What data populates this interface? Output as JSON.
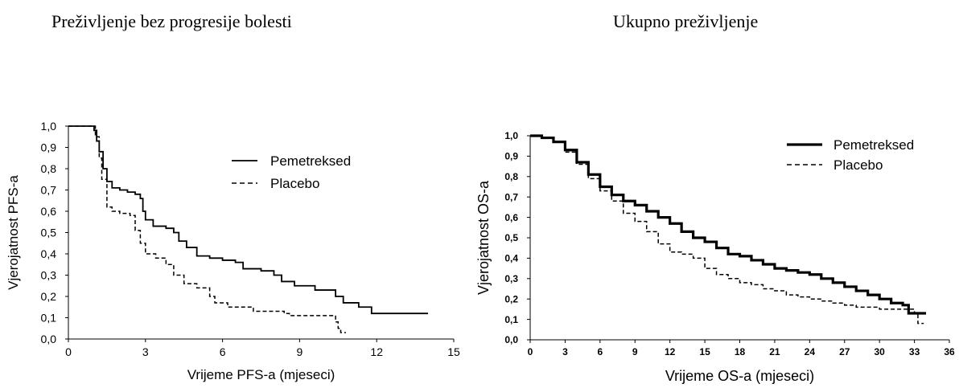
{
  "titles": {
    "left": "Preživljenje bez progresije bolesti",
    "right": "Ukupno preživljenje"
  },
  "chart_data": [
    {
      "type": "line",
      "title": "Preživljenje bez progresije bolesti",
      "xlabel": "Vrijeme PFS-a (mjeseci)",
      "ylabel": "Vjerojatnost PFS-a",
      "xlim": [
        0,
        15
      ],
      "ylim": [
        0,
        1
      ],
      "xticks": [
        0,
        3,
        6,
        9,
        12,
        15
      ],
      "yticks": [
        "0,0",
        "0,1",
        "0,2",
        "0,3",
        "0,4",
        "0,5",
        "0,6",
        "0,7",
        "0,8",
        "0,9",
        "1,0"
      ],
      "grid": false,
      "legend_position": "upper-right",
      "series": [
        {
          "name": "Pemetreksed",
          "style": "solid",
          "points": [
            [
              0,
              1.0
            ],
            [
              0.8,
              1.0
            ],
            [
              1.0,
              0.98
            ],
            [
              1.1,
              0.93
            ],
            [
              1.2,
              0.88
            ],
            [
              1.35,
              0.8
            ],
            [
              1.5,
              0.74
            ],
            [
              1.7,
              0.71
            ],
            [
              2.0,
              0.7
            ],
            [
              2.3,
              0.69
            ],
            [
              2.6,
              0.68
            ],
            [
              2.8,
              0.66
            ],
            [
              2.9,
              0.6
            ],
            [
              3.0,
              0.56
            ],
            [
              3.3,
              0.53
            ],
            [
              3.8,
              0.52
            ],
            [
              4.1,
              0.5
            ],
            [
              4.3,
              0.46
            ],
            [
              4.6,
              0.43
            ],
            [
              5.0,
              0.39
            ],
            [
              5.5,
              0.38
            ],
            [
              6.0,
              0.37
            ],
            [
              6.5,
              0.36
            ],
            [
              6.8,
              0.33
            ],
            [
              7.5,
              0.32
            ],
            [
              8.0,
              0.3
            ],
            [
              8.3,
              0.27
            ],
            [
              8.8,
              0.25
            ],
            [
              9.6,
              0.23
            ],
            [
              10.4,
              0.2
            ],
            [
              10.7,
              0.17
            ],
            [
              11.3,
              0.15
            ],
            [
              11.8,
              0.12
            ],
            [
              14.0,
              0.12
            ]
          ]
        },
        {
          "name": "Placebo",
          "style": "dashed",
          "points": [
            [
              0,
              1.0
            ],
            [
              0.9,
              1.0
            ],
            [
              1.05,
              0.95
            ],
            [
              1.2,
              0.85
            ],
            [
              1.3,
              0.75
            ],
            [
              1.5,
              0.62
            ],
            [
              1.7,
              0.6
            ],
            [
              2.0,
              0.59
            ],
            [
              2.4,
              0.58
            ],
            [
              2.6,
              0.51
            ],
            [
              2.8,
              0.45
            ],
            [
              3.0,
              0.4
            ],
            [
              3.4,
              0.38
            ],
            [
              3.8,
              0.35
            ],
            [
              4.1,
              0.3
            ],
            [
              4.5,
              0.26
            ],
            [
              5.0,
              0.24
            ],
            [
              5.5,
              0.2
            ],
            [
              5.7,
              0.17
            ],
            [
              6.2,
              0.15
            ],
            [
              7.2,
              0.13
            ],
            [
              8.4,
              0.12
            ],
            [
              8.6,
              0.11
            ],
            [
              10.2,
              0.11
            ],
            [
              10.4,
              0.08
            ],
            [
              10.5,
              0.05
            ],
            [
              10.6,
              0.03
            ],
            [
              10.8,
              0.03
            ]
          ]
        }
      ]
    },
    {
      "type": "line",
      "title": "Ukupno preživljenje",
      "xlabel": "Vrijeme OS-a (mjeseci)",
      "ylabel": "Vjerojatnost OS-a",
      "xlim": [
        0,
        36
      ],
      "ylim": [
        0,
        1
      ],
      "xticks": [
        0,
        3,
        6,
        9,
        12,
        15,
        18,
        21,
        24,
        27,
        30,
        33,
        36
      ],
      "yticks": [
        "0,0",
        "0,1",
        "0,2",
        "0,3",
        "0,4",
        "0,5",
        "0,6",
        "0,7",
        "0,8",
        "0,9",
        "1,0"
      ],
      "grid": false,
      "legend_position": "upper-right",
      "series": [
        {
          "name": "Pemetreksed",
          "style": "solid-bold",
          "points": [
            [
              0,
              1.0
            ],
            [
              1.0,
              0.99
            ],
            [
              2.0,
              0.97
            ],
            [
              3.0,
              0.93
            ],
            [
              4.0,
              0.87
            ],
            [
              5.0,
              0.81
            ],
            [
              6.0,
              0.75
            ],
            [
              7.0,
              0.71
            ],
            [
              8.0,
              0.68
            ],
            [
              9.0,
              0.66
            ],
            [
              10.0,
              0.63
            ],
            [
              11.0,
              0.6
            ],
            [
              12.0,
              0.57
            ],
            [
              13.0,
              0.53
            ],
            [
              14.0,
              0.5
            ],
            [
              15.0,
              0.48
            ],
            [
              16.0,
              0.45
            ],
            [
              17.0,
              0.42
            ],
            [
              18.0,
              0.41
            ],
            [
              19.0,
              0.39
            ],
            [
              20.0,
              0.37
            ],
            [
              21.0,
              0.35
            ],
            [
              22.0,
              0.34
            ],
            [
              23.0,
              0.33
            ],
            [
              24.0,
              0.32
            ],
            [
              25.0,
              0.3
            ],
            [
              26.0,
              0.28
            ],
            [
              27.0,
              0.26
            ],
            [
              28.0,
              0.24
            ],
            [
              29.0,
              0.22
            ],
            [
              30.0,
              0.2
            ],
            [
              31.0,
              0.18
            ],
            [
              32.0,
              0.17
            ],
            [
              32.5,
              0.13
            ],
            [
              34.0,
              0.13
            ]
          ]
        },
        {
          "name": "Placebo",
          "style": "dashed",
          "points": [
            [
              0,
              1.0
            ],
            [
              1.0,
              0.99
            ],
            [
              2.0,
              0.97
            ],
            [
              3.0,
              0.92
            ],
            [
              4.0,
              0.86
            ],
            [
              5.0,
              0.79
            ],
            [
              6.0,
              0.73
            ],
            [
              7.0,
              0.68
            ],
            [
              8.0,
              0.62
            ],
            [
              9.0,
              0.58
            ],
            [
              10.0,
              0.53
            ],
            [
              11.0,
              0.47
            ],
            [
              12.0,
              0.43
            ],
            [
              13.0,
              0.42
            ],
            [
              14.0,
              0.4
            ],
            [
              15.0,
              0.35
            ],
            [
              16.0,
              0.32
            ],
            [
              17.0,
              0.3
            ],
            [
              18.0,
              0.28
            ],
            [
              19.0,
              0.27
            ],
            [
              20.0,
              0.25
            ],
            [
              21.0,
              0.24
            ],
            [
              22.0,
              0.22
            ],
            [
              23.0,
              0.21
            ],
            [
              24.0,
              0.2
            ],
            [
              25.0,
              0.19
            ],
            [
              26.0,
              0.18
            ],
            [
              27.0,
              0.17
            ],
            [
              28.0,
              0.16
            ],
            [
              29.0,
              0.16
            ],
            [
              30.0,
              0.15
            ],
            [
              31.0,
              0.15
            ],
            [
              32.0,
              0.15
            ],
            [
              33.0,
              0.13
            ],
            [
              33.3,
              0.08
            ],
            [
              33.8,
              0.08
            ]
          ]
        }
      ]
    }
  ]
}
